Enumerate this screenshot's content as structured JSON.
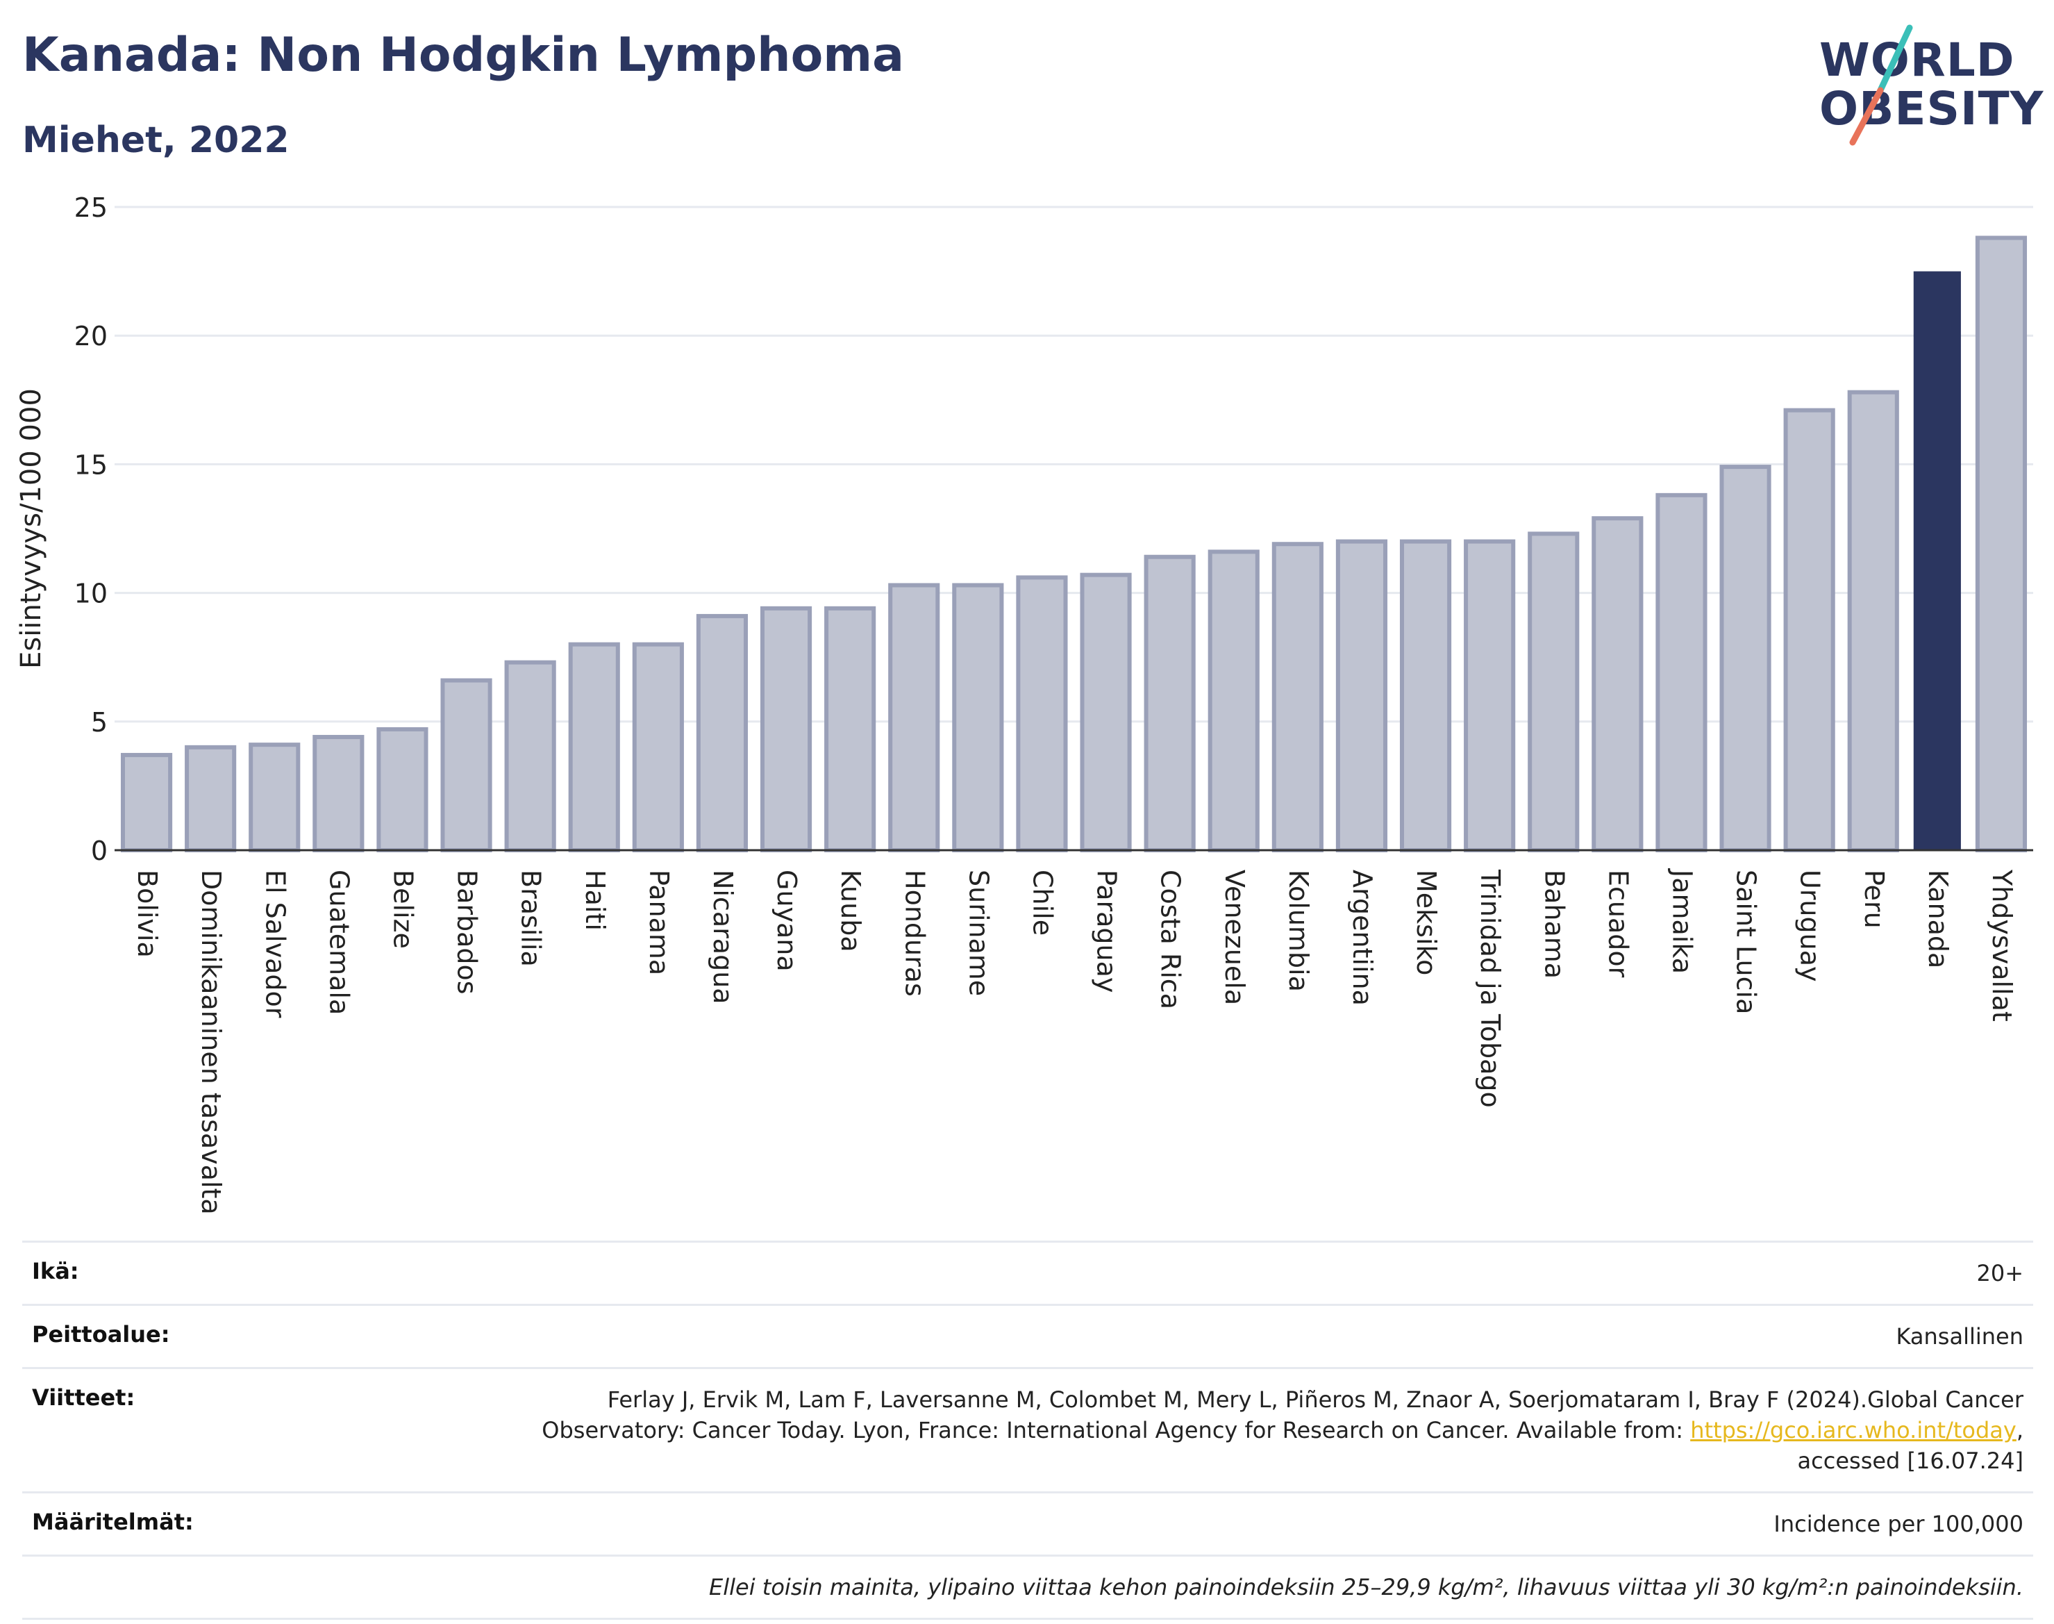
{
  "title": "Kanada: Non Hodgkin Lymphoma",
  "subtitle": "Miehet, 2022",
  "logo": {
    "line1": "WORLD",
    "line2": "OBESITY",
    "alt": "World Obesity logo"
  },
  "colors": {
    "bar": "#bfc3d1",
    "bar_stroke": "#9aa0b8",
    "highlight": "#2b3660",
    "grid": "#e6e9ef",
    "link": "#e6b81e",
    "logo_teal": "#3bbfb8",
    "logo_coral": "#e8735a"
  },
  "chart_data": {
    "type": "bar",
    "ylabel": "Esiintyvyys/100 000",
    "ylim": [
      0,
      25
    ],
    "yticks": [
      0,
      5,
      10,
      15,
      20,
      25
    ],
    "grid": true,
    "highlight": "Kanada",
    "categories": [
      "Bolivia",
      "Dominikaaninen tasavalta",
      "El Salvador",
      "Guatemala",
      "Belize",
      "Barbados",
      "Brasilia",
      "Haiti",
      "Panama",
      "Nicaragua",
      "Guyana",
      "Kuuba",
      "Honduras",
      "Suriname",
      "Chile",
      "Paraguay",
      "Costa Rica",
      "Venezuela",
      "Kolumbia",
      "Argentiina",
      "Meksiko",
      "Trinidad ja Tobago",
      "Bahama",
      "Ecuador",
      "Jamaika",
      "Saint Lucia",
      "Uruguay",
      "Peru",
      "Kanada",
      "Yhdysvallat"
    ],
    "values": [
      3.7,
      4.0,
      4.1,
      4.4,
      4.7,
      6.6,
      7.3,
      8.0,
      8.0,
      9.1,
      9.4,
      9.4,
      10.3,
      10.3,
      10.6,
      10.7,
      11.4,
      11.6,
      11.9,
      12.0,
      12.0,
      12.0,
      12.3,
      12.9,
      13.8,
      14.9,
      17.1,
      17.8,
      22.5,
      23.8
    ]
  },
  "info": {
    "age_label": "Ikä:",
    "age_value": "20+",
    "coverage_label": "Peittoalue:",
    "coverage_value": "Kansallinen",
    "refs_label": "Viitteet:",
    "refs_text1": "Ferlay J, Ervik M, Lam F, Laversanne M, Colombet M, Mery L, Piñeros M, Znaor A, Soerjomataram I, Bray F (2024).Global Cancer",
    "refs_text2": "Observatory: Cancer Today. Lyon, France: International Agency for Research on Cancer. Available from: ",
    "refs_link": "https://gco.iarc.who.int/today",
    "refs_text3": ",",
    "refs_text4": "accessed [16.07.24]",
    "defs_label": "Määritelmät:",
    "defs_value": "Incidence per 100,000",
    "note": "Ellei toisin mainita, ylipaino viittaa kehon painoindeksiin 25–29,9 kg/m², lihavuus viittaa yli 30 kg/m²:n painoindeksiin."
  }
}
